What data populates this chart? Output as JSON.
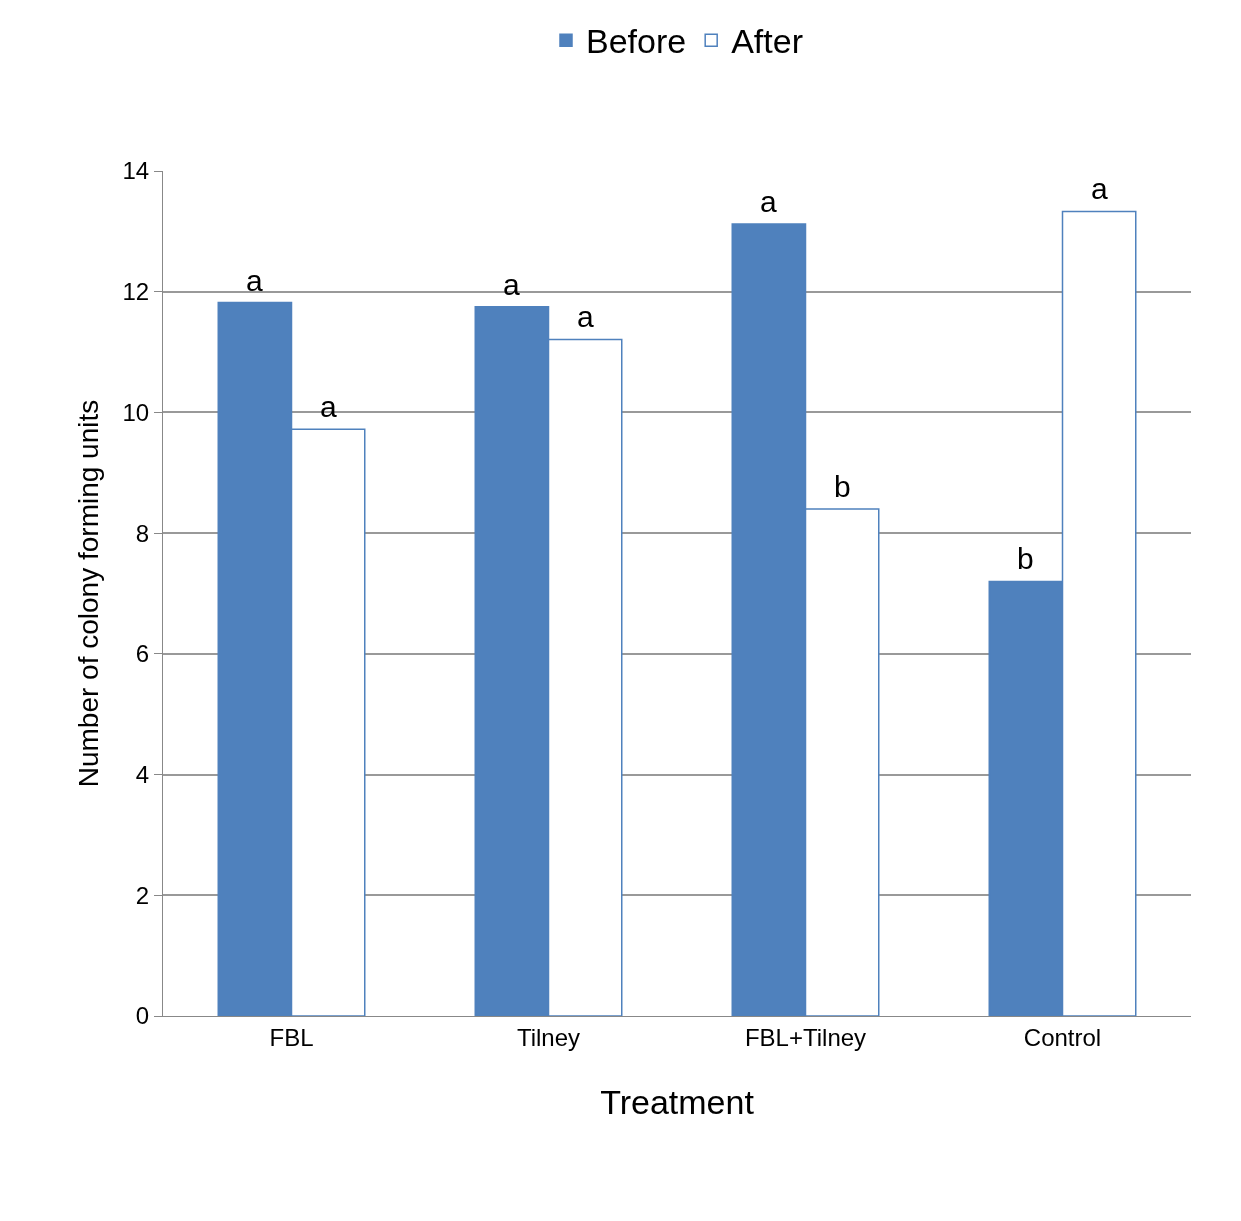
{
  "chart_data": {
    "type": "bar",
    "xlabel": "Treatment",
    "ylabel": "Number of colony forming units",
    "categories": [
      "FBL",
      "Tilney",
      "FBL+Tilney",
      "Control"
    ],
    "series": [
      {
        "name": "Before",
        "color": "#4f81bd",
        "values": [
          11.82,
          11.75,
          13.12,
          7.2
        ]
      },
      {
        "name": "After",
        "color": "#ffffff",
        "values": [
          9.72,
          11.21,
          8.4,
          13.33
        ]
      }
    ],
    "ylim": [
      0,
      14
    ],
    "yticks": [
      0,
      2,
      4,
      6,
      8,
      10,
      12,
      14
    ],
    "grid": "y",
    "legend": "top",
    "annotations": [
      {
        "text": "a",
        "x": "FBL",
        "y": 11.82
      },
      {
        "text": "a",
        "x": "FBL",
        "y": 9.72
      },
      {
        "text": "a",
        "x": "Tilney",
        "y": 11.75
      },
      {
        "text": "a",
        "x": "Tilney",
        "y": 11.21
      },
      {
        "text": "a",
        "x": "FBL+Tilney",
        "y": 13.12
      },
      {
        "text": "b",
        "x": "FBL+Tilney",
        "y": 8.4
      },
      {
        "text": "b",
        "x": "Control",
        "y": 7.2
      },
      {
        "text": "a",
        "x": "Control",
        "y": 13.33
      }
    ]
  }
}
